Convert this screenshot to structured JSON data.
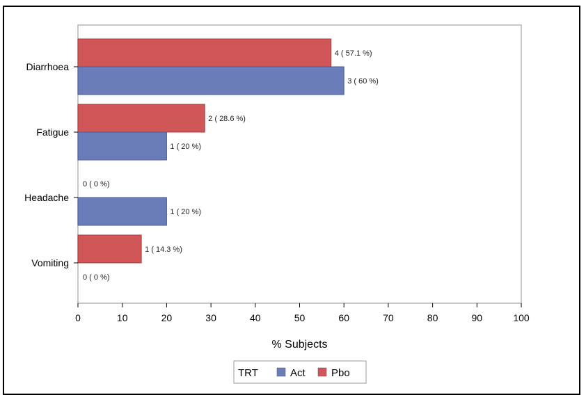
{
  "chart_data": {
    "type": "bar",
    "orientation": "horizontal",
    "categories": [
      "Diarrhoea",
      "Fatigue",
      "Headache",
      "Vomiting"
    ],
    "series": [
      {
        "name": "Pbo",
        "color": "#d05657",
        "values": [
          57.1,
          28.6,
          0,
          14.3
        ],
        "labels": [
          "4 ( 57.1 %)",
          "2 ( 28.6 %)",
          "0 ( 0 %)",
          "1 ( 14.3 %)"
        ]
      },
      {
        "name": "Act",
        "color": "#6a7db8",
        "values": [
          60,
          20,
          20,
          0
        ],
        "labels": [
          "3 ( 60 %)",
          "1 ( 20 %)",
          "1 ( 20 %)",
          "0 ( 0 %)"
        ]
      }
    ],
    "xlabel": "% Subjects",
    "ylabel": "",
    "xlim": [
      0,
      100
    ],
    "xticks": [
      "0",
      "10",
      "20",
      "30",
      "40",
      "50",
      "60",
      "70",
      "80",
      "90",
      "100"
    ],
    "grid": false,
    "legend": {
      "title": "TRT",
      "position": "bottom",
      "entries": [
        {
          "name": "Act",
          "color": "#6a7db8"
        },
        {
          "name": "Pbo",
          "color": "#d05657"
        }
      ]
    }
  }
}
